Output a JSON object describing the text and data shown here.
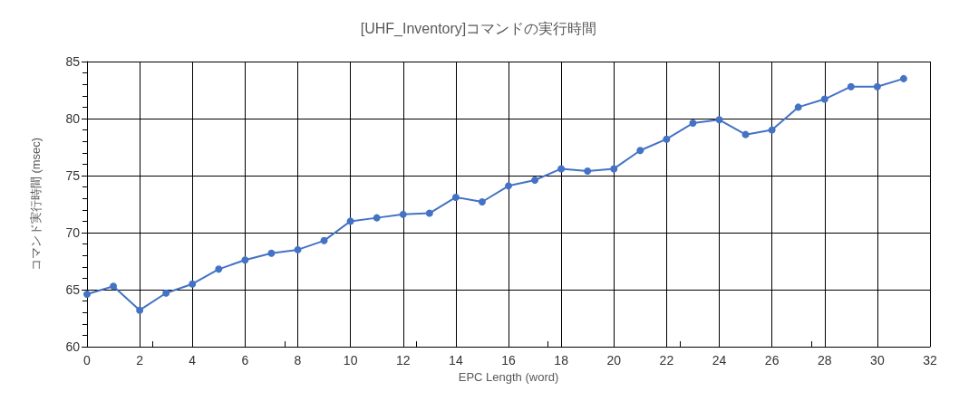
{
  "chart_data": {
    "type": "line",
    "title": "[UHF_Inventory]コマンドの実行時間",
    "xlabel": "EPC Length (word)",
    "ylabel": "コマンド実行時間 (msec)",
    "x": [
      0,
      1,
      2,
      3,
      4,
      5,
      6,
      7,
      8,
      9,
      10,
      11,
      12,
      13,
      14,
      15,
      16,
      17,
      18,
      19,
      20,
      21,
      22,
      23,
      24,
      25,
      26,
      27,
      28,
      29,
      30,
      31
    ],
    "series": [
      {
        "color": "#4472c4",
        "values": [
          64.6,
          65.3,
          63.2,
          64.7,
          65.5,
          66.8,
          67.6,
          68.2,
          68.5,
          69.3,
          71.0,
          71.3,
          71.6,
          71.7,
          73.1,
          72.7,
          74.1,
          74.6,
          75.6,
          75.4,
          75.6,
          77.2,
          78.2,
          79.6,
          79.9,
          78.6,
          79.0,
          81.0,
          81.7,
          82.8,
          82.8,
          83.5
        ]
      }
    ],
    "xlim": [
      0,
      32
    ],
    "xticks": [
      0,
      2,
      4,
      6,
      8,
      10,
      12,
      14,
      16,
      18,
      20,
      22,
      24,
      26,
      28,
      30,
      32
    ],
    "ylim": [
      60,
      85
    ],
    "yticks": [
      60,
      65,
      70,
      75,
      80,
      85
    ],
    "grid": true,
    "marker": "circle",
    "line_style": "solid"
  }
}
